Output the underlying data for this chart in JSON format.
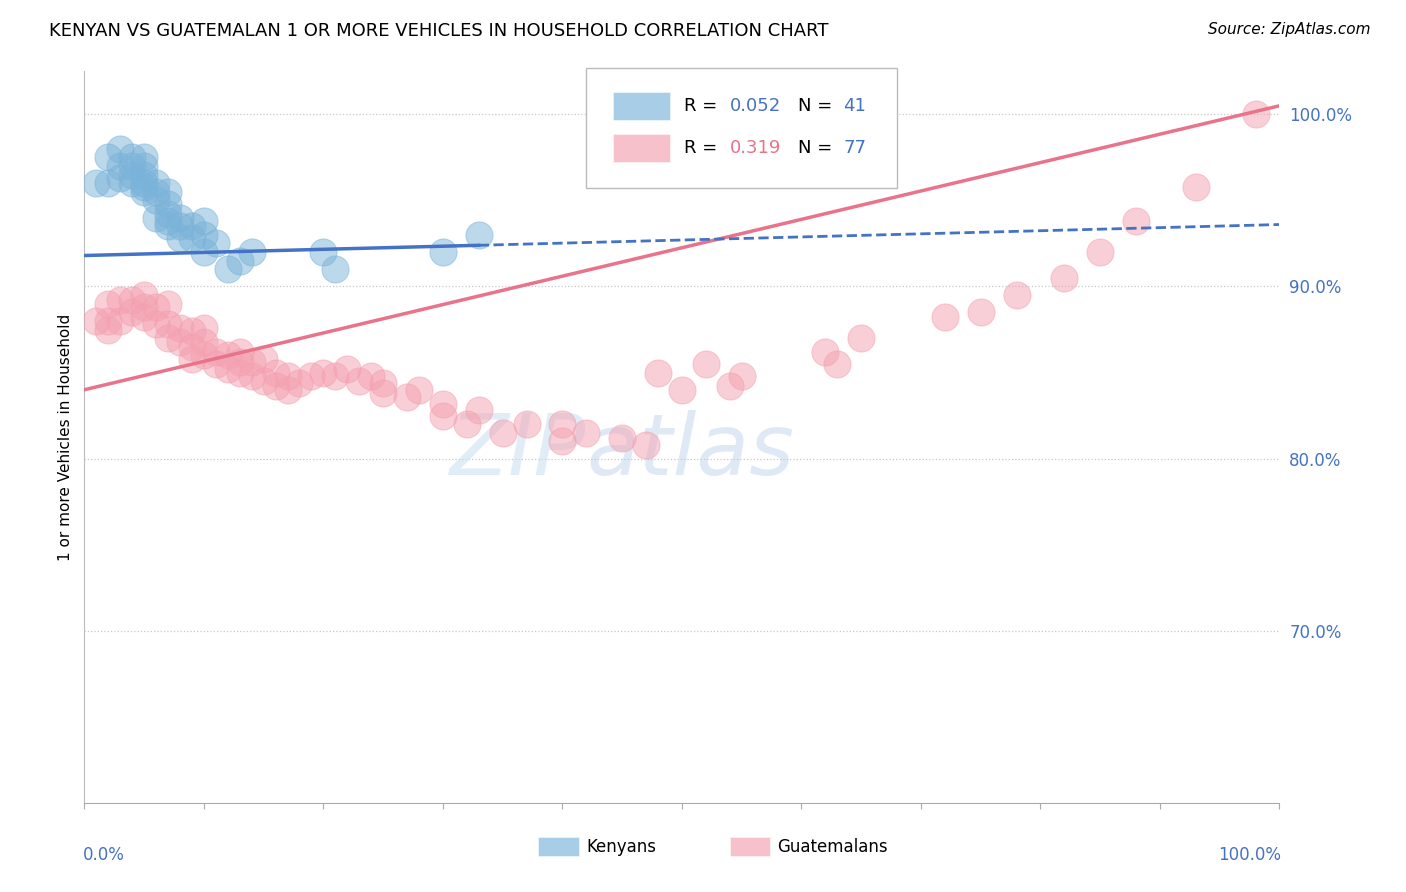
{
  "title": "KENYAN VS GUATEMALAN 1 OR MORE VEHICLES IN HOUSEHOLD CORRELATION CHART",
  "source": "Source: ZipAtlas.com",
  "ylabel": "1 or more Vehicles in Household",
  "watermark": "ZIPatlas",
  "kenyan_x": [
    0.01,
    0.02,
    0.02,
    0.03,
    0.03,
    0.03,
    0.04,
    0.04,
    0.04,
    0.04,
    0.05,
    0.05,
    0.05,
    0.05,
    0.05,
    0.05,
    0.06,
    0.06,
    0.06,
    0.06,
    0.07,
    0.07,
    0.07,
    0.07,
    0.07,
    0.08,
    0.08,
    0.08,
    0.09,
    0.09,
    0.1,
    0.1,
    0.1,
    0.11,
    0.12,
    0.13,
    0.14,
    0.2,
    0.21,
    0.3,
    0.33
  ],
  "kenyan_y": [
    0.96,
    0.96,
    0.975,
    0.963,
    0.97,
    0.98,
    0.96,
    0.965,
    0.97,
    0.975,
    0.955,
    0.958,
    0.96,
    0.965,
    0.97,
    0.975,
    0.94,
    0.95,
    0.955,
    0.96,
    0.935,
    0.938,
    0.942,
    0.948,
    0.955,
    0.928,
    0.935,
    0.94,
    0.928,
    0.935,
    0.92,
    0.93,
    0.938,
    0.925,
    0.91,
    0.915,
    0.92,
    0.92,
    0.91,
    0.92,
    0.93
  ],
  "guatemalan_x": [
    0.01,
    0.02,
    0.02,
    0.02,
    0.03,
    0.03,
    0.04,
    0.04,
    0.05,
    0.05,
    0.05,
    0.06,
    0.06,
    0.07,
    0.07,
    0.07,
    0.08,
    0.08,
    0.09,
    0.09,
    0.09,
    0.1,
    0.1,
    0.1,
    0.11,
    0.11,
    0.12,
    0.12,
    0.13,
    0.13,
    0.13,
    0.14,
    0.14,
    0.15,
    0.15,
    0.16,
    0.16,
    0.17,
    0.17,
    0.18,
    0.19,
    0.2,
    0.21,
    0.22,
    0.23,
    0.24,
    0.25,
    0.25,
    0.27,
    0.28,
    0.3,
    0.3,
    0.32,
    0.33,
    0.35,
    0.37,
    0.4,
    0.4,
    0.42,
    0.45,
    0.47,
    0.48,
    0.5,
    0.52,
    0.54,
    0.55,
    0.62,
    0.63,
    0.65,
    0.72,
    0.75,
    0.78,
    0.82,
    0.85,
    0.88,
    0.93,
    0.98
  ],
  "guatemalan_y": [
    0.88,
    0.875,
    0.88,
    0.89,
    0.88,
    0.892,
    0.885,
    0.892,
    0.882,
    0.888,
    0.895,
    0.878,
    0.888,
    0.87,
    0.878,
    0.89,
    0.868,
    0.876,
    0.858,
    0.865,
    0.874,
    0.86,
    0.868,
    0.876,
    0.855,
    0.862,
    0.852,
    0.86,
    0.85,
    0.856,
    0.862,
    0.848,
    0.856,
    0.845,
    0.858,
    0.842,
    0.85,
    0.84,
    0.848,
    0.844,
    0.848,
    0.85,
    0.848,
    0.852,
    0.845,
    0.848,
    0.838,
    0.844,
    0.836,
    0.84,
    0.825,
    0.832,
    0.82,
    0.828,
    0.815,
    0.82,
    0.81,
    0.82,
    0.815,
    0.812,
    0.808,
    0.85,
    0.84,
    0.855,
    0.842,
    0.848,
    0.862,
    0.855,
    0.87,
    0.882,
    0.885,
    0.895,
    0.905,
    0.92,
    0.938,
    0.958,
    1.0
  ],
  "kenyan_color": "#7ab3d9",
  "guatemalan_color": "#f4a0b0",
  "kenyan_line_color": "#4472c4",
  "guatemalan_line_color": "#e8738a",
  "kenyan_line_intercept": 0.918,
  "kenyan_line_slope": 0.018,
  "guatemalan_line_intercept": 0.84,
  "guatemalan_line_slope": 0.165,
  "title_fontsize": 13,
  "source_fontsize": 11,
  "tick_label_color": "#4472c4",
  "grid_color": "#c8c8c8",
  "background_color": "#ffffff",
  "xlim": [
    0.0,
    1.0
  ],
  "ylim": [
    0.6,
    1.025
  ],
  "ytick_positions": [
    0.7,
    0.8,
    0.9,
    1.0
  ],
  "ytick_labels": [
    "70.0%",
    "80.0%",
    "90.0%",
    "100.0%"
  ]
}
